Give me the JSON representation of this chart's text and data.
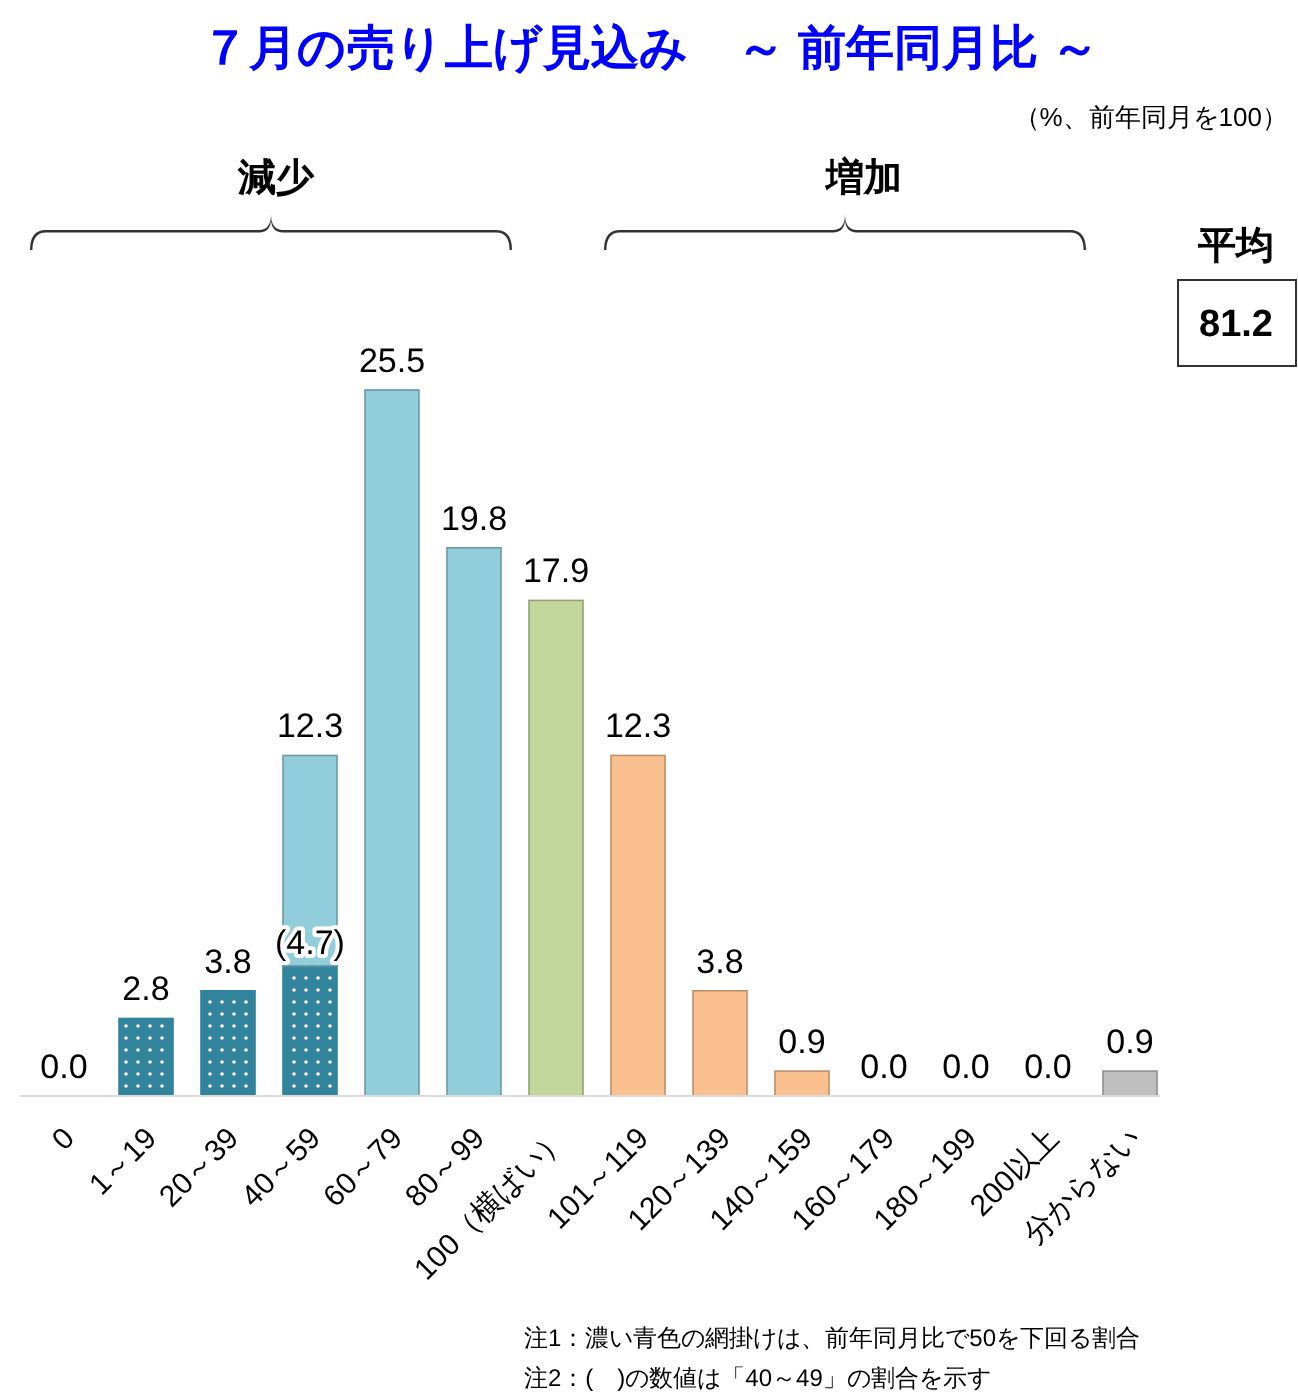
{
  "chart_data": {
    "type": "bar",
    "title": "７月の売り上げ見込み　～ 前年同月比 ～",
    "categories": [
      "0",
      "1～19",
      "20～39",
      "40～59",
      "60～79",
      "80～99",
      "100（横ばい）",
      "101～119",
      "120～139",
      "140～159",
      "160～179",
      "180～199",
      "200以上",
      "分からない"
    ],
    "stacked": true,
    "series": [
      {
        "color": "#31849b",
        "values": [
          0.0,
          2.8,
          3.8,
          4.7,
          null,
          null,
          null,
          null,
          null,
          null,
          null,
          null,
          null,
          null
        ],
        "value_labels": [
          null,
          null,
          null,
          "(4.7)",
          null,
          null,
          null,
          null,
          null,
          null,
          null,
          null,
          null,
          null
        ]
      },
      {
        "colors": [
          null,
          null,
          null,
          "#92cddc",
          "#92cddc",
          "#92cddc",
          "#c3d69b",
          "#fac090",
          "#fac090",
          "#fac090",
          "#fac090",
          "#fac090",
          "#fac090",
          "#bfbfbf"
        ],
        "values": [
          null,
          null,
          null,
          7.6,
          25.5,
          19.8,
          17.9,
          12.3,
          3.8,
          0.9,
          0.0,
          0.0,
          0.0,
          0.9
        ]
      }
    ],
    "totals": [
      "0.0",
      "2.8",
      "3.8",
      "12.3",
      "25.5",
      "19.8",
      "17.9",
      "12.3",
      "3.8",
      "0.9",
      "0.0",
      "0.0",
      "0.0",
      "0.9"
    ],
    "annotations": [
      "（%、前年同月を100）",
      "減少",
      "増加",
      "平均",
      "81.2",
      "注1：濃い青色の網掛けは、前年同月比で50を下回る割合",
      "注2：(　)の数値は「40～49」の割合を示す"
    ]
  }
}
